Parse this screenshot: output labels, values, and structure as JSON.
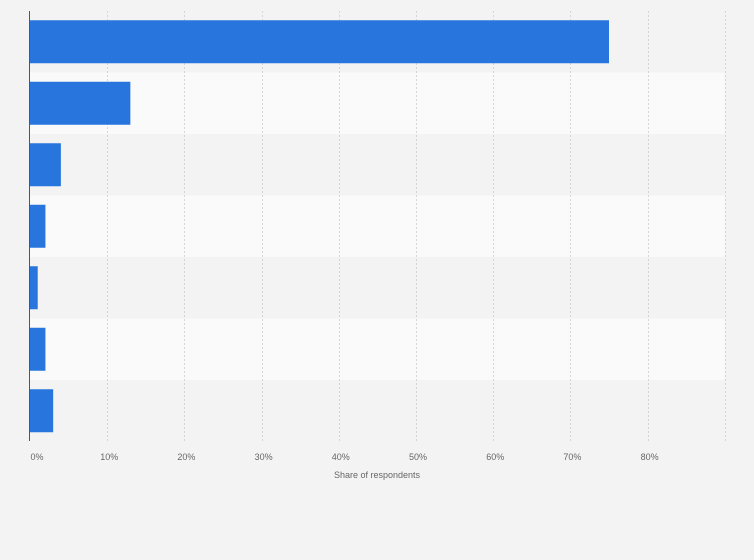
{
  "chart_data": {
    "type": "bar",
    "orientation": "horizontal",
    "categories": [
      "",
      "",
      "",
      "",
      "",
      "",
      ""
    ],
    "values": [
      75,
      13,
      4,
      2,
      1,
      2,
      3
    ],
    "xlabel": "Share of respondents",
    "ylabel": "",
    "xlim": [
      0,
      90
    ],
    "x_ticks": [
      0,
      10,
      20,
      30,
      40,
      50,
      60,
      70,
      80
    ],
    "x_tick_labels": [
      "0%",
      "10%",
      "20%",
      "30%",
      "40%",
      "50%",
      "60%",
      "70%",
      "80%"
    ],
    "grid": true,
    "bar_color": "#2876dd",
    "row_band_colors": [
      "#f3f3f3",
      "#fafafa"
    ]
  }
}
